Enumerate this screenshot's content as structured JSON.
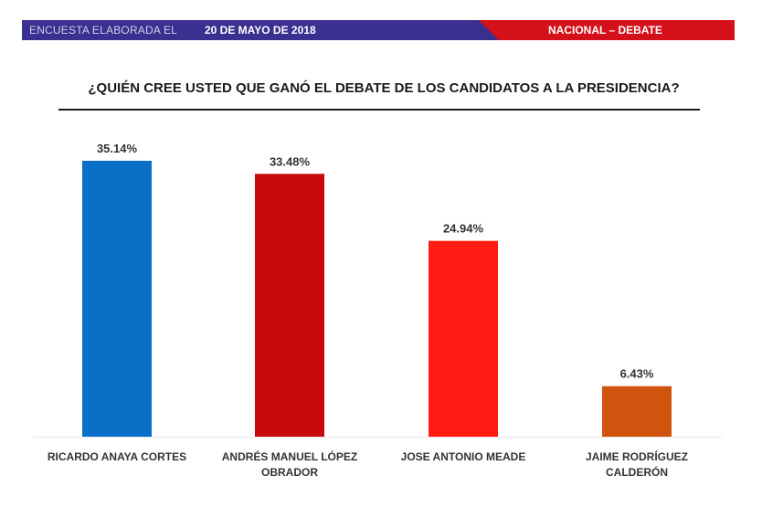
{
  "banner": {
    "left_text": "ENCUESTA ELABORADA EL",
    "date_text": "20 DE MAYO DE 2018",
    "right_text": "NACIONAL – DEBATE",
    "colors": {
      "left": "#3b2f8f",
      "right": "#d4101a"
    }
  },
  "chart_data": {
    "type": "bar",
    "title": "¿QUIÉN CREE USTED QUE GANÓ EL DEBATE DE LOS CANDIDATOS A LA PRESIDENCIA?",
    "categories": [
      "RICARDO ANAYA CORTES",
      "ANDRÉS MANUEL LÓPEZ OBRADOR",
      "JOSE ANTONIO MEADE",
      "JAIME RODRÍGUEZ CALDERÓN"
    ],
    "category_lines": [
      [
        "RICARDO ANAYA CORTES"
      ],
      [
        "ANDRÉS MANUEL LÓPEZ",
        "OBRADOR"
      ],
      [
        "JOSE ANTONIO MEADE"
      ],
      [
        "JAIME RODRÍGUEZ",
        "CALDERÓN"
      ]
    ],
    "values": [
      35.14,
      33.48,
      24.94,
      6.43
    ],
    "data_labels": [
      "35.14%",
      "33.48%",
      "24.94%",
      "6.43%"
    ],
    "colors": [
      "#0a6fc7",
      "#c90a0a",
      "#ff1a12",
      "#d0530e"
    ],
    "ylim": [
      0,
      35.14
    ],
    "xlabel": "",
    "ylabel": "",
    "grid": false,
    "legend": "none"
  }
}
